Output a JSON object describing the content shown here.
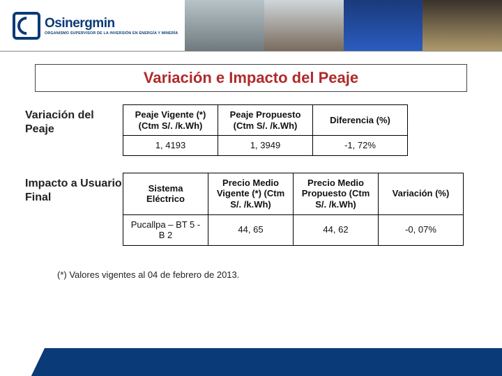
{
  "logo": {
    "name": "Osinergmin",
    "subtitle": "ORGANISMO SUPERVISOR DE LA INVERSIÓN EN ENERGÍA Y MINERÍA"
  },
  "title": "Variación e Impacto del Peaje",
  "section1": {
    "label": "Variación del Peaje",
    "table": {
      "columns": [
        "Peaje Vigente (*) (Ctm S/. /k.Wh)",
        "Peaje Propuesto (Ctm S/. /k.Wh)",
        "Diferencia (%)"
      ],
      "rows": [
        [
          "1, 4193",
          "1, 3949",
          "-1, 72%"
        ]
      ]
    }
  },
  "section2": {
    "label": "Impacto a Usuario Final",
    "table": {
      "columns": [
        "Sistema Eléctrico",
        "Precio Medio Vigente (*) (Ctm S/. /k.Wh)",
        "Precio Medio Propuesto (Ctm S/. /k.Wh)",
        "Variación (%)"
      ],
      "rows": [
        [
          "Pucallpa – BT 5 -B 2",
          "44, 65",
          "44, 62",
          "-0, 07%"
        ]
      ]
    }
  },
  "footnote": "(*) Valores vigentes al 04 de febrero de 2013.",
  "colors": {
    "brand": "#0a3a78",
    "title": "#b02a2a",
    "border": "#000000",
    "bg": "#ffffff"
  }
}
